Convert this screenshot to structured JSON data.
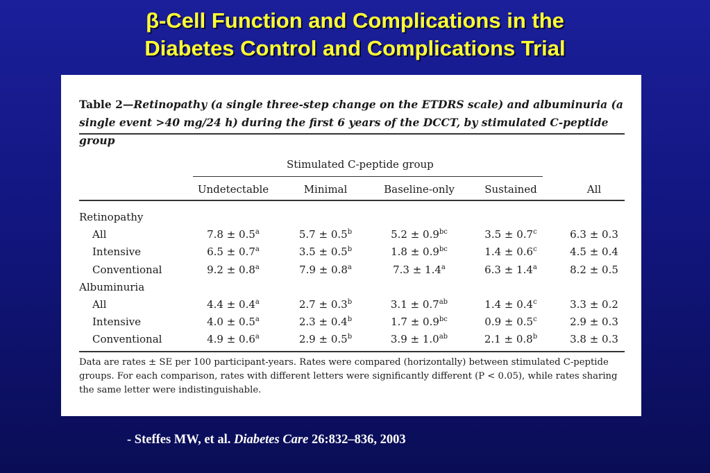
{
  "title": {
    "line1": "β-Cell Function and Complications in the",
    "line2": "Diabetes Control and Complications Trial"
  },
  "table": {
    "caption_lead": "Table 2—",
    "caption_body": "Retinopathy (a single three-step change on the ETDRS scale) and albuminuria (a single event >40 mg/24 h) during the first 6 years of the DCCT, by stimulated C-peptide group",
    "group_header": "Stimulated C-peptide group",
    "columns": [
      "Undetectable",
      "Minimal",
      "Baseline-only",
      "Sustained",
      "All"
    ],
    "sections": [
      {
        "label": "Retinopathy",
        "rows": [
          {
            "label": "All",
            "cells": [
              [
                "7.8 ± 0.5",
                "a"
              ],
              [
                "5.7 ± 0.5",
                "b"
              ],
              [
                "5.2 ± 0.9",
                "bc"
              ],
              [
                "3.5 ± 0.7",
                "c"
              ],
              [
                "6.3 ± 0.3",
                ""
              ]
            ]
          },
          {
            "label": "Intensive",
            "cells": [
              [
                "6.5 ± 0.7",
                "a"
              ],
              [
                "3.5 ± 0.5",
                "b"
              ],
              [
                "1.8 ± 0.9",
                "bc"
              ],
              [
                "1.4 ± 0.6",
                "c"
              ],
              [
                "4.5 ± 0.4",
                ""
              ]
            ]
          },
          {
            "label": "Conventional",
            "cells": [
              [
                "9.2 ± 0.8",
                "a"
              ],
              [
                "7.9 ± 0.8",
                "a"
              ],
              [
                "7.3 ± 1.4",
                "a"
              ],
              [
                "6.3 ± 1.4",
                "a"
              ],
              [
                "8.2 ± 0.5",
                ""
              ]
            ]
          }
        ]
      },
      {
        "label": "Albuminuria",
        "rows": [
          {
            "label": "All",
            "cells": [
              [
                "4.4 ± 0.4",
                "a"
              ],
              [
                "2.7 ± 0.3",
                "b"
              ],
              [
                "3.1 ± 0.7",
                "ab"
              ],
              [
                "1.4 ± 0.4",
                "c"
              ],
              [
                "3.3 ± 0.2",
                ""
              ]
            ]
          },
          {
            "label": "Intensive",
            "cells": [
              [
                "4.0 ± 0.5",
                "a"
              ],
              [
                "2.3 ± 0.4",
                "b"
              ],
              [
                "1.7 ± 0.9",
                "bc"
              ],
              [
                "0.9 ± 0.5",
                "c"
              ],
              [
                "2.9 ± 0.3",
                ""
              ]
            ]
          },
          {
            "label": "Conventional",
            "cells": [
              [
                "4.9 ± 0.6",
                "a"
              ],
              [
                "2.9 ± 0.5",
                "b"
              ],
              [
                "3.9 ± 1.0",
                "ab"
              ],
              [
                "2.1 ± 0.8",
                "b"
              ],
              [
                "3.8 ± 0.3",
                ""
              ]
            ]
          }
        ]
      }
    ],
    "footnote": "Data are rates ± SE per 100 participant-years. Rates were compared (horizontally) between stimulated C-peptide groups. For each comparison, rates with different letters were significantly different (P < 0.05), while rates sharing the same letter were indistinguishable."
  },
  "citation": {
    "prefix": "- Steffes MW, et al.",
    "journal": "Diabetes Care",
    "ref": "26:832–836, 2003"
  }
}
